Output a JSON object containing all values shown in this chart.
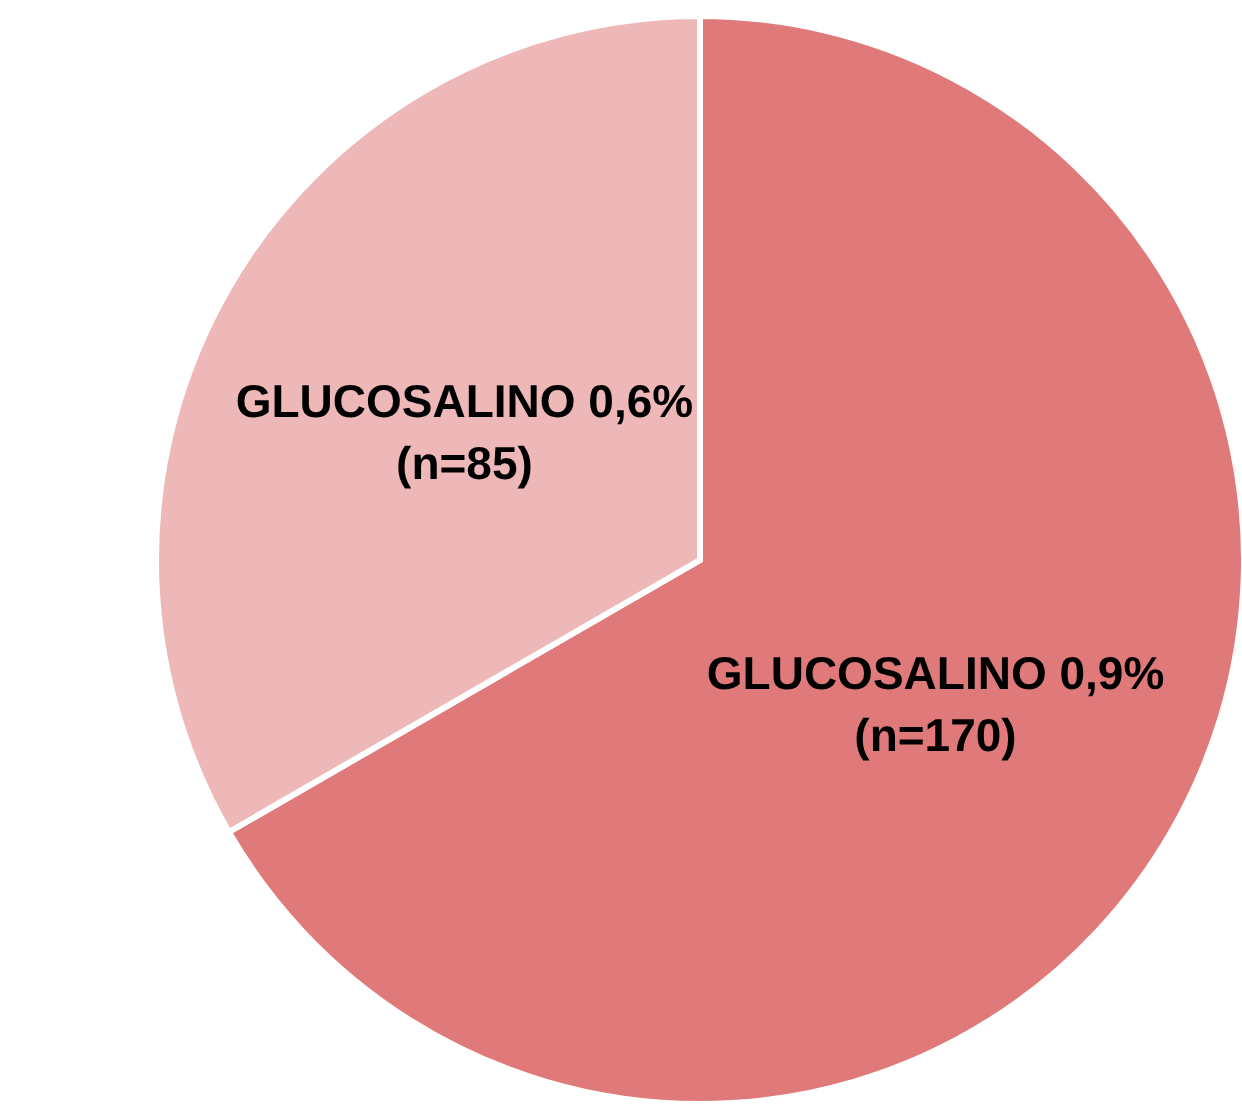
{
  "chart_data": {
    "type": "pie",
    "categories": [
      "GLUCOSALINO 0,9%",
      "GLUCOSALINO 0,6%"
    ],
    "values": [
      170,
      85
    ],
    "value_labels": [
      "(n=170)",
      "(n=85)"
    ],
    "colors": [
      "#e07a7a",
      "#eeb7b8"
    ]
  }
}
